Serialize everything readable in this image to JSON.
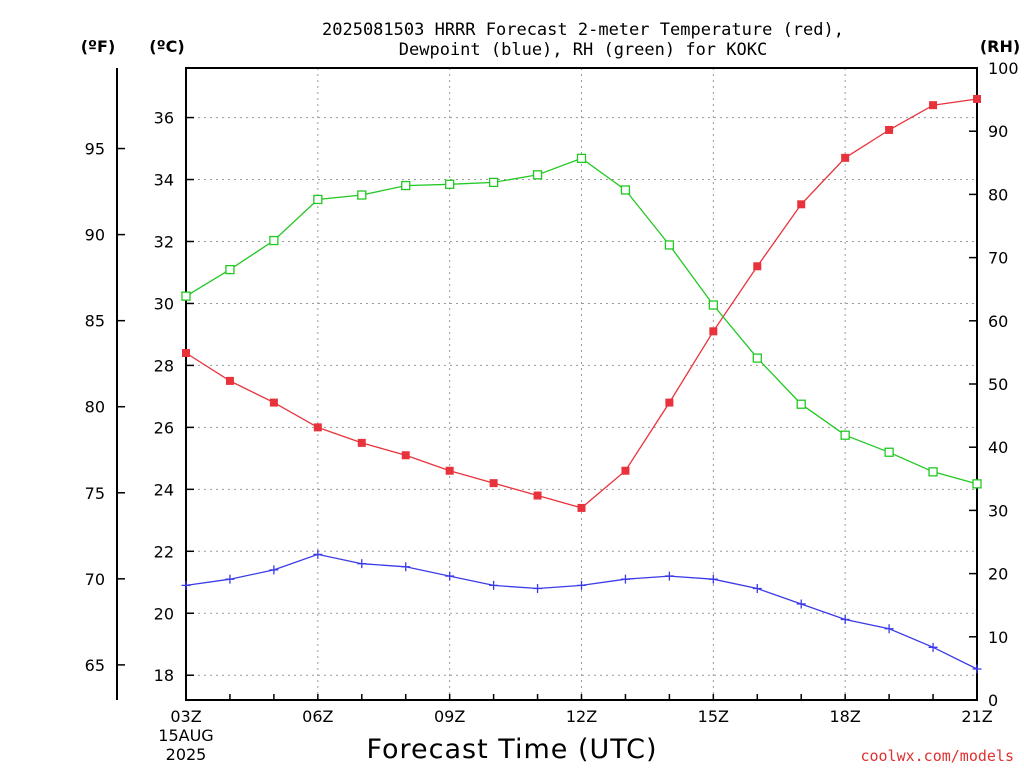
{
  "chart_data": {
    "type": "line",
    "title_line1": "2025081503 HRRR Forecast 2-meter Temperature (red),",
    "title_line2": "Dewpoint (blue), RH (green) for KOKC",
    "xlabel": "Forecast Time (UTC)",
    "x": [
      "03Z",
      "04Z",
      "05Z",
      "06Z",
      "07Z",
      "08Z",
      "09Z",
      "10Z",
      "11Z",
      "12Z",
      "13Z",
      "14Z",
      "15Z",
      "16Z",
      "17Z",
      "18Z",
      "19Z",
      "20Z",
      "21Z"
    ],
    "x_tick_labels": [
      "03Z",
      "06Z",
      "09Z",
      "12Z",
      "15Z",
      "18Z",
      "21Z"
    ],
    "x_start_date_line1": "15AUG",
    "x_start_date_line2": "2025",
    "axes": {
      "fahrenheit": {
        "unit_label": "(ºF)",
        "ticks": [
          "65",
          "70",
          "75",
          "80",
          "85",
          "90",
          "95"
        ]
      },
      "celsius": {
        "unit_label": "(ºC)",
        "range": [
          17.2,
          37.6
        ],
        "ticks": [
          "18",
          "20",
          "22",
          "24",
          "26",
          "28",
          "30",
          "32",
          "34",
          "36"
        ]
      },
      "rh": {
        "unit_label": "(RH)",
        "range": [
          0,
          100
        ],
        "ticks": [
          "0",
          "10",
          "20",
          "30",
          "40",
          "50",
          "60",
          "70",
          "80",
          "90",
          "100"
        ]
      }
    },
    "grid": true,
    "series": [
      {
        "key": "temperature",
        "color": "#e8333c",
        "marker": "filled-square",
        "axis": "celsius",
        "values": [
          28.4,
          27.5,
          26.8,
          26.0,
          25.5,
          25.1,
          24.6,
          24.2,
          23.8,
          23.4,
          24.6,
          26.8,
          29.1,
          31.2,
          33.2,
          34.7,
          35.6,
          36.4,
          36.6
        ]
      },
      {
        "key": "dewpoint",
        "color": "#3a3ae8",
        "marker": "plus",
        "axis": "celsius",
        "values": [
          20.9,
          21.1,
          21.4,
          21.9,
          21.6,
          21.5,
          21.2,
          20.9,
          20.8,
          20.9,
          21.1,
          21.2,
          21.1,
          20.8,
          20.3,
          19.8,
          19.5,
          18.9,
          18.2
        ]
      },
      {
        "key": "rh",
        "color": "#22c822",
        "marker": "open-square",
        "axis": "rh",
        "values": [
          63.9,
          68.1,
          72.7,
          79.2,
          79.9,
          81.4,
          81.6,
          81.9,
          83.1,
          85.7,
          80.7,
          72.0,
          62.5,
          54.1,
          46.8,
          41.9,
          39.2,
          36.1,
          34.2
        ]
      }
    ]
  },
  "credit": "coolwx.com/models"
}
